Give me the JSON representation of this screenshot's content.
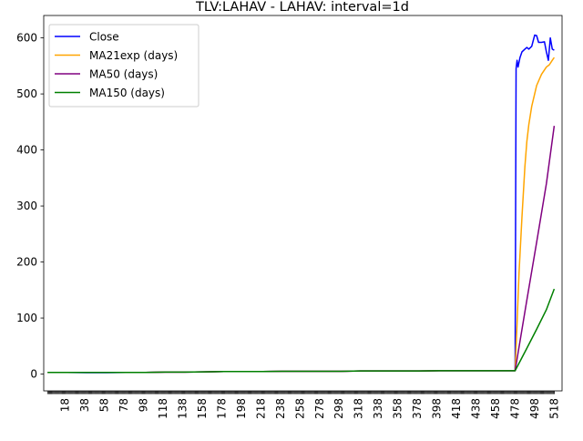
{
  "chart_data": {
    "type": "line",
    "title": "TLV:LAHAV - LAHAV: interval=1d",
    "xlabel": "",
    "ylabel": "",
    "xlim": [
      -4,
      526
    ],
    "ylim": [
      -30,
      640
    ],
    "yticks": [
      0,
      100,
      200,
      300,
      400,
      500,
      600
    ],
    "xticks": [
      18,
      38,
      58,
      78,
      98,
      118,
      138,
      158,
      178,
      198,
      218,
      238,
      258,
      278,
      298,
      318,
      338,
      358,
      378,
      398,
      418,
      438,
      458,
      478,
      498,
      518
    ],
    "legend_position": "top-left",
    "grid": false,
    "series": [
      {
        "name": "Close",
        "color": "#0000ff",
        "x": [
          0,
          20,
          40,
          60,
          80,
          100,
          120,
          140,
          160,
          180,
          200,
          220,
          240,
          260,
          280,
          300,
          320,
          340,
          360,
          380,
          400,
          420,
          440,
          460,
          478,
          479,
          480,
          481,
          483,
          485,
          488,
          490,
          492,
          495,
          498,
          500,
          502,
          505,
          508,
          510,
          512,
          514,
          516,
          518
        ],
        "y": [
          3,
          3,
          2.5,
          2.5,
          3,
          3,
          3.5,
          3.5,
          4,
          4.5,
          4.5,
          4.5,
          5,
          5,
          5,
          5,
          5.5,
          5.5,
          5.5,
          5.5,
          6,
          6,
          6,
          6,
          6,
          545,
          560,
          548,
          565,
          575,
          580,
          583,
          580,
          585,
          605,
          604,
          592,
          592,
          593,
          575,
          560,
          600,
          580,
          578
        ]
      },
      {
        "name": "MA21exp (days)",
        "color": "#ffa500",
        "x": [
          0,
          20,
          40,
          60,
          80,
          100,
          120,
          140,
          160,
          180,
          200,
          220,
          240,
          260,
          280,
          300,
          320,
          340,
          360,
          380,
          400,
          420,
          440,
          460,
          478,
          480,
          482,
          485,
          488,
          490,
          492,
          495,
          498,
          500,
          505,
          510,
          513,
          516,
          518
        ],
        "y": [
          3,
          3,
          3,
          3,
          3,
          3,
          3.5,
          3.5,
          4,
          4.5,
          4.5,
          4.5,
          5,
          5,
          5,
          5,
          5.5,
          5.5,
          5.5,
          5.5,
          6,
          6,
          6,
          6,
          6,
          90,
          180,
          280,
          370,
          415,
          445,
          478,
          500,
          515,
          535,
          548,
          552,
          560,
          565
        ]
      },
      {
        "name": "MA50 (days)",
        "color": "#800080",
        "x": [
          0,
          20,
          40,
          60,
          80,
          100,
          120,
          140,
          160,
          180,
          200,
          220,
          240,
          260,
          280,
          300,
          320,
          340,
          360,
          380,
          400,
          420,
          440,
          460,
          478,
          490,
          500,
          510,
          518
        ],
        "y": [
          3,
          3,
          3,
          3,
          3,
          3,
          3.5,
          3.5,
          4,
          4.5,
          4.5,
          4.5,
          5,
          5,
          5,
          5,
          5.5,
          5.5,
          5.5,
          5.5,
          6,
          6,
          6,
          6,
          6,
          132,
          235,
          340,
          443
        ]
      },
      {
        "name": "MA150 (days)",
        "color": "#008000",
        "x": [
          0,
          20,
          40,
          60,
          80,
          100,
          120,
          140,
          160,
          180,
          200,
          220,
          240,
          260,
          280,
          300,
          320,
          340,
          360,
          380,
          400,
          420,
          440,
          460,
          478,
          490,
          500,
          510,
          518
        ],
        "y": [
          3,
          3,
          3,
          3,
          3,
          3,
          3.5,
          3.5,
          4,
          4.5,
          4.5,
          4.5,
          5,
          5,
          5,
          5,
          5.5,
          5.5,
          5.5,
          5.5,
          6,
          6,
          6,
          6,
          6,
          46,
          80,
          115,
          152
        ]
      }
    ]
  }
}
